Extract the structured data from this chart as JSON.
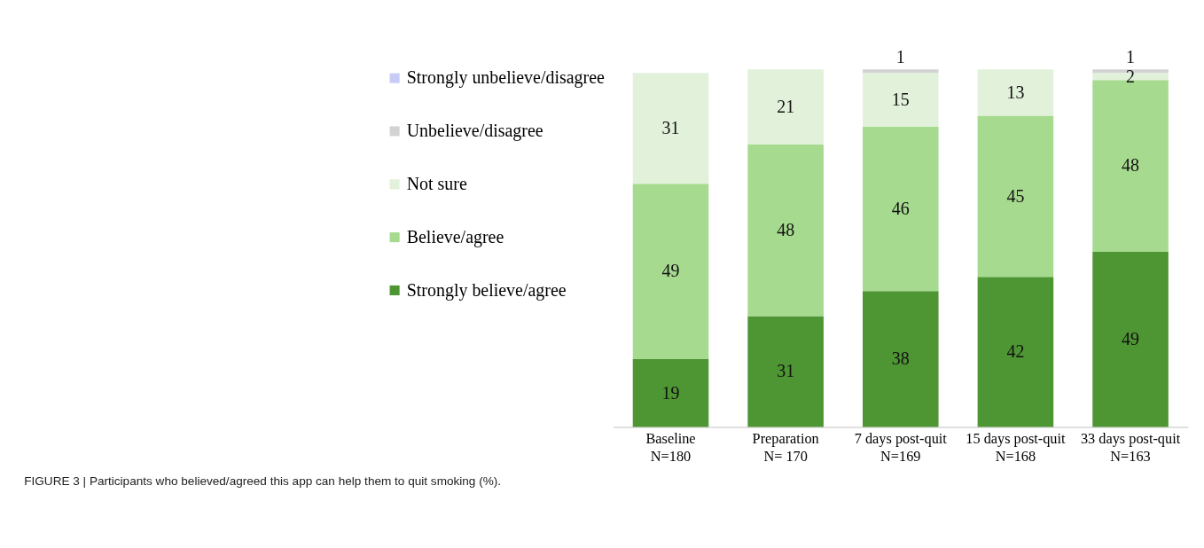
{
  "chart_data": {
    "type": "bar",
    "stacked": true,
    "data_labels": true,
    "grid": false,
    "legend": "left",
    "tick_labels": "x",
    "categories": [
      "Baseline\nN=180",
      "Preparation\nN= 170",
      "7 days post-quit\nN=169",
      "15 days post-quit\nN=168",
      "33 days post-quit\nN=163"
    ],
    "series": [
      {
        "name": "Strongly believe/agree",
        "color": "#4e9533",
        "values": [
          19,
          31,
          38,
          42,
          49
        ]
      },
      {
        "name": "Believe/agree",
        "color": "#a6da8f",
        "values": [
          49,
          48,
          46,
          45,
          48
        ]
      },
      {
        "name": "Not sure",
        "color": "#e2f1da",
        "values": [
          31,
          21,
          15,
          13,
          2
        ]
      },
      {
        "name": "Unbelieve/disagree",
        "color": "#d3d3d3",
        "values": [
          null,
          null,
          1,
          null,
          1
        ]
      },
      {
        "name": "Strongly unbelieve/disagree",
        "color": "#c7cbf6",
        "values": [
          null,
          null,
          null,
          null,
          null
        ]
      }
    ],
    "annotations": [
      "FIGURE 3 | Participants who believed/agreed this app can help them to quit smoking (%)."
    ]
  }
}
